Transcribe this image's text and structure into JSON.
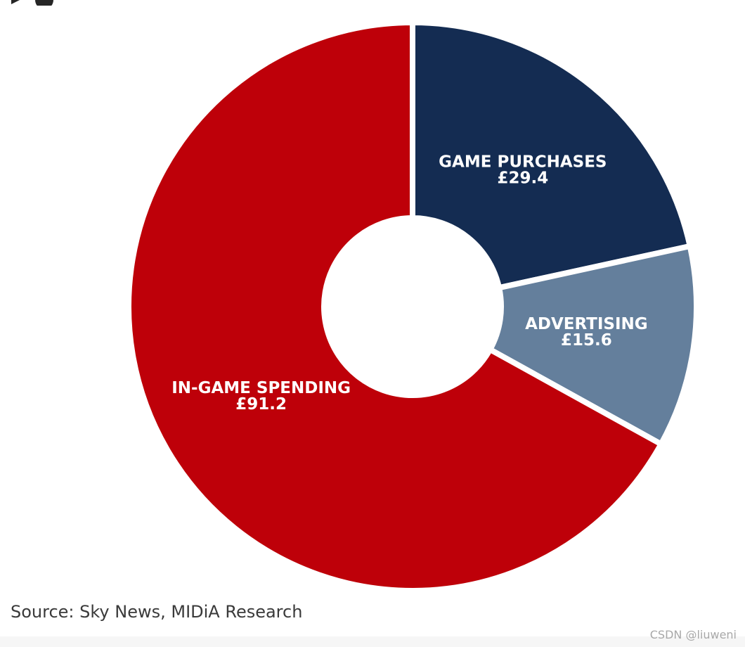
{
  "chart_data": {
    "type": "pie",
    "variant": "donut",
    "title": "",
    "slices": [
      {
        "label": "GAME PURCHASES",
        "value": 29.4,
        "value_text": "£29.4",
        "color": "#142c52"
      },
      {
        "label": "ADVERTISING",
        "value": 15.6,
        "value_text": "£15.6",
        "color": "#647f9c"
      },
      {
        "label": "IN-GAME SPENDING",
        "value": 91.2,
        "value_text": "£91.2",
        "color": "#be0009"
      }
    ],
    "legend": "none",
    "grid": false
  },
  "source_text": "Source: Sky News, MIDiA Research",
  "watermark_text": "CSDN @liuweni",
  "colors": {
    "background": "#ffffff",
    "gap": "#ffffff"
  }
}
